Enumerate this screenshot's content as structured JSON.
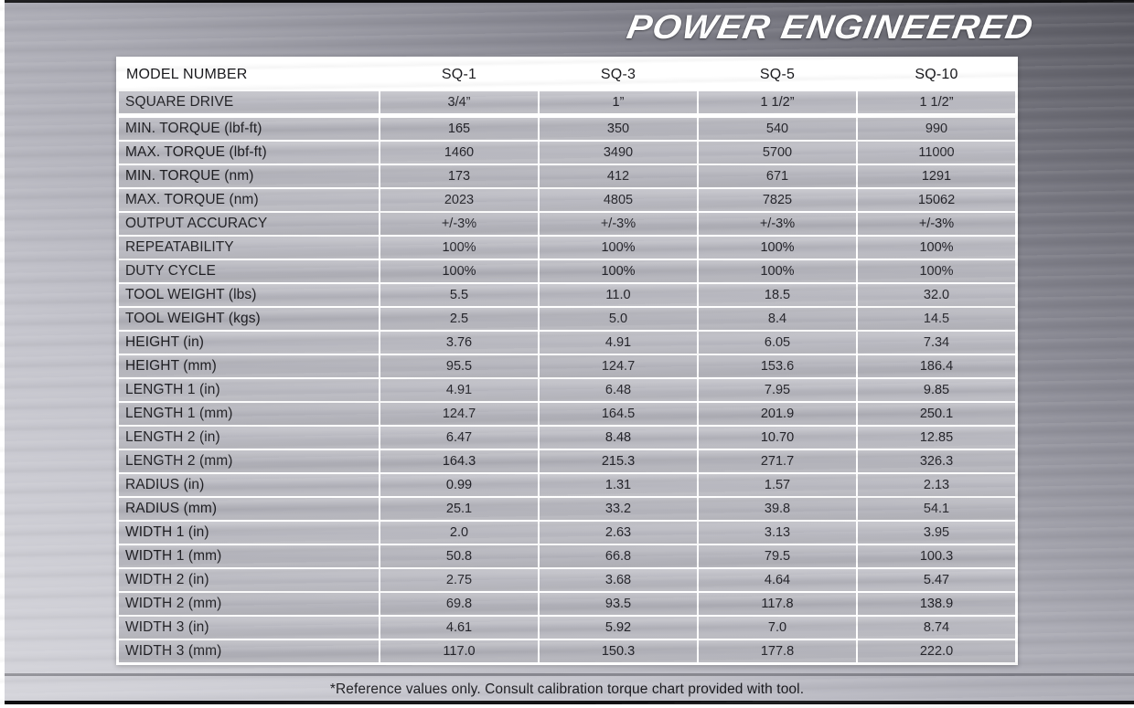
{
  "brand": {
    "logo_text": "POWER ENGINEERED"
  },
  "table": {
    "columns": [
      "MODEL NUMBER",
      "SQ-1",
      "SQ-3",
      "SQ-5",
      "SQ-10"
    ],
    "rows": [
      {
        "label": "SQUARE DRIVE",
        "values": [
          "3/4”",
          "1”",
          "1 1/2”",
          "1 1/2”"
        ],
        "gap_after": true
      },
      {
        "label": "MIN. TORQUE (lbf-ft)",
        "values": [
          "165",
          "350",
          "540",
          "990"
        ]
      },
      {
        "label": "MAX. TORQUE (lbf-ft)",
        "values": [
          "1460",
          "3490",
          "5700",
          "11000"
        ]
      },
      {
        "label": "MIN. TORQUE (nm)",
        "values": [
          "173",
          "412",
          "671",
          "1291"
        ]
      },
      {
        "label": "MAX. TORQUE (nm)",
        "values": [
          "2023",
          "4805",
          "7825",
          "15062"
        ]
      },
      {
        "label": "OUTPUT ACCURACY",
        "values": [
          "+/-3%",
          "+/-3%",
          "+/-3%",
          "+/-3%"
        ]
      },
      {
        "label": "REPEATABILITY",
        "values": [
          "100%",
          "100%",
          "100%",
          "100%"
        ]
      },
      {
        "label": "DUTY CYCLE",
        "values": [
          "100%",
          "100%",
          "100%",
          "100%"
        ]
      },
      {
        "label": "TOOL WEIGHT (lbs)",
        "values": [
          "5.5",
          "11.0",
          "18.5",
          "32.0"
        ]
      },
      {
        "label": "TOOL WEIGHT (kgs)",
        "values": [
          "2.5",
          "5.0",
          "8.4",
          "14.5"
        ]
      },
      {
        "label": "HEIGHT (in)",
        "values": [
          "3.76",
          "4.91",
          "6.05",
          "7.34"
        ]
      },
      {
        "label": "HEIGHT (mm)",
        "values": [
          "95.5",
          "124.7",
          "153.6",
          "186.4"
        ]
      },
      {
        "label": "LENGTH 1 (in)",
        "values": [
          "4.91",
          "6.48",
          "7.95",
          "9.85"
        ]
      },
      {
        "label": "LENGTH 1 (mm)",
        "values": [
          "124.7",
          "164.5",
          "201.9",
          "250.1"
        ]
      },
      {
        "label": "LENGTH 2 (in)",
        "values": [
          "6.47",
          "8.48",
          "10.70",
          "12.85"
        ]
      },
      {
        "label": "LENGTH 2 (mm)",
        "values": [
          "164.3",
          "215.3",
          "271.7",
          "326.3"
        ]
      },
      {
        "label": "RADIUS (in)",
        "values": [
          "0.99",
          "1.31",
          "1.57",
          "2.13"
        ]
      },
      {
        "label": "RADIUS (mm)",
        "values": [
          "25.1",
          "33.2",
          "39.8",
          "54.1"
        ]
      },
      {
        "label": "WIDTH 1 (in)",
        "values": [
          "2.0",
          "2.63",
          "3.13",
          "3.95"
        ]
      },
      {
        "label": "WIDTH 1 (mm)",
        "values": [
          "50.8",
          "66.8",
          "79.5",
          "100.3"
        ]
      },
      {
        "label": "WIDTH 2 (in)",
        "values": [
          "2.75",
          "3.68",
          "4.64",
          "5.47"
        ]
      },
      {
        "label": "WIDTH 2 (mm)",
        "values": [
          "69.8",
          "93.5",
          "117.8",
          "138.9"
        ]
      },
      {
        "label": "WIDTH 3 (in)",
        "values": [
          "4.61",
          "5.92",
          "7.0",
          "8.74"
        ]
      },
      {
        "label": "WIDTH 3 (mm)",
        "values": [
          "117.0",
          "150.3",
          "177.8",
          "222.0"
        ]
      }
    ]
  },
  "footer": {
    "note": "*Reference values only. Consult calibration torque chart provided with tool."
  },
  "colors": {
    "frame": "#ffffff",
    "header_bg": "#ffffff",
    "cell_bg": "#b9b9c1",
    "cell_text": "#1d1d21",
    "metal_light": "#d4d4da",
    "metal_dark": "#585860",
    "border": "#0e0e10",
    "logo_text_color": "#ffffff"
  }
}
